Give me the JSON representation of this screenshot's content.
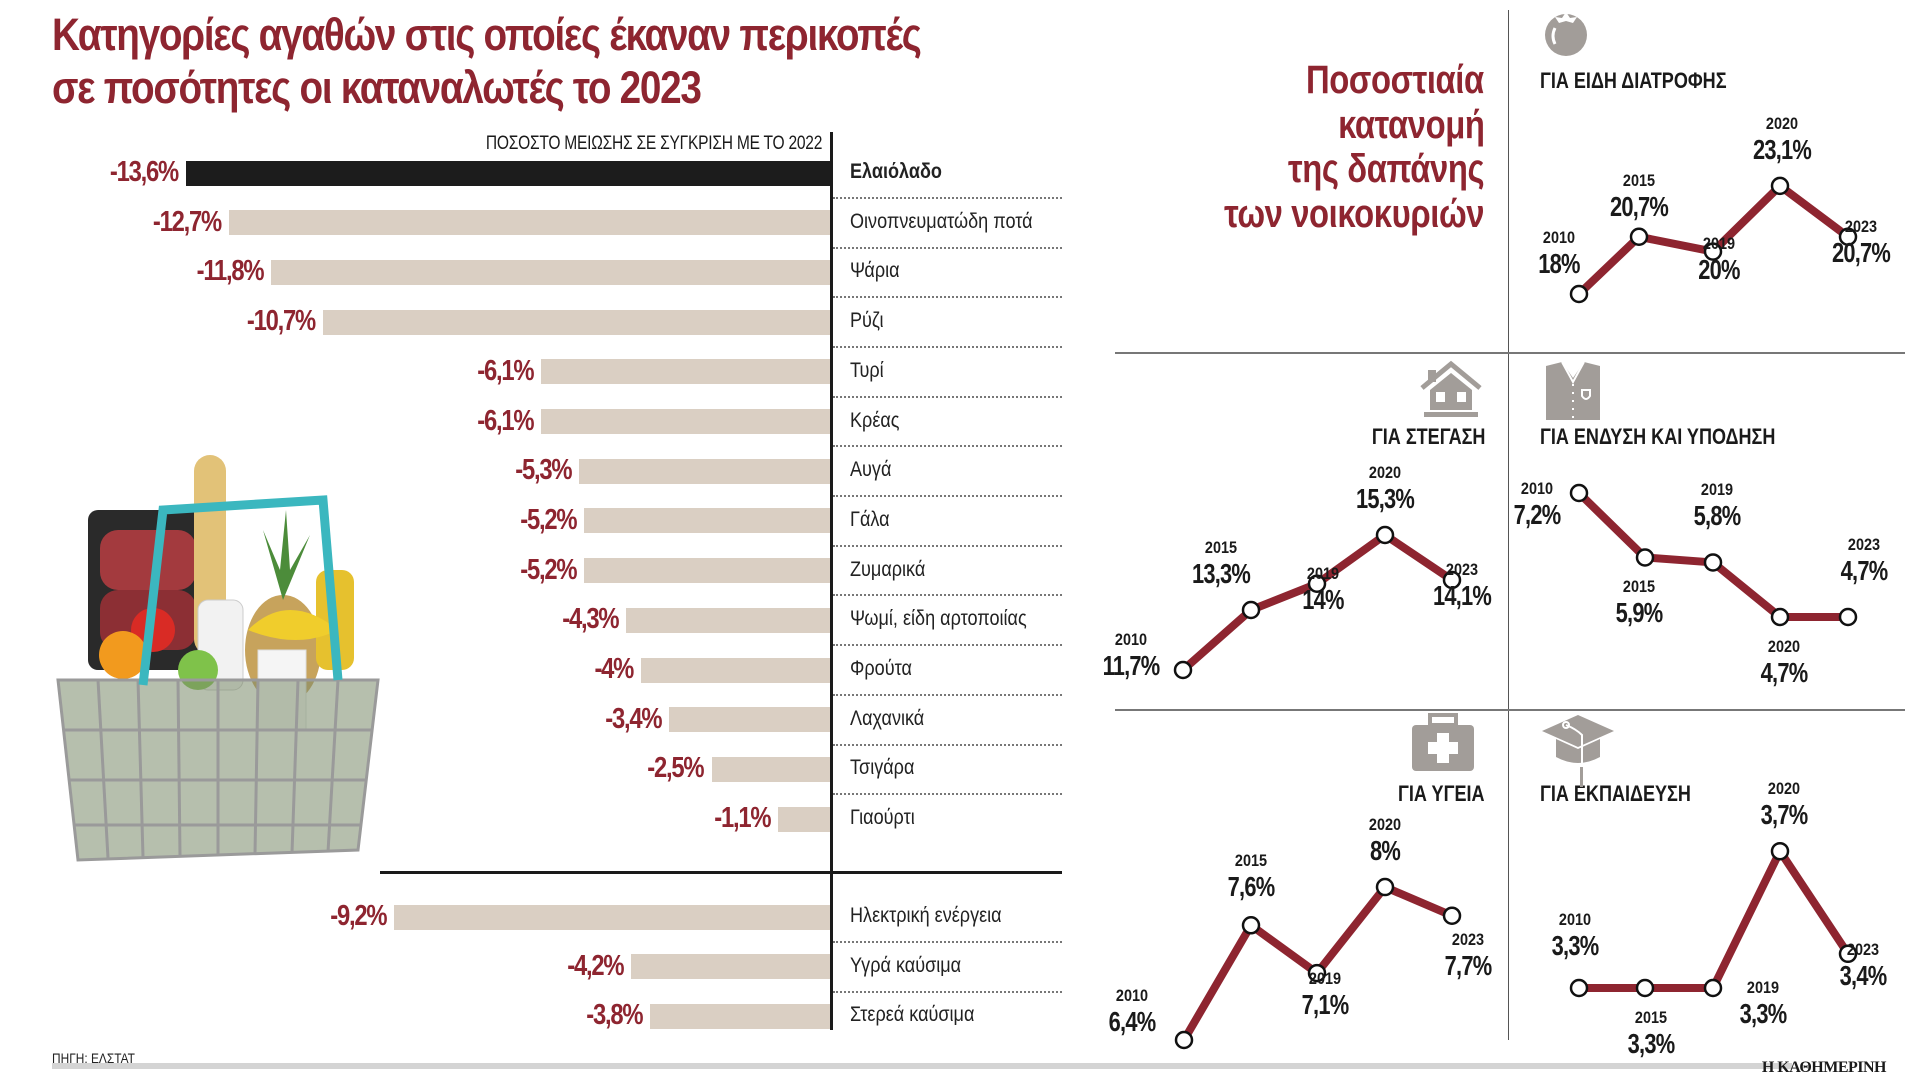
{
  "title_line1": "Κατηγορίες αγαθών στις οποίες έκαναν περικοπές",
  "title_line2": "σε ποσότητες οι καταναλωτές το 2023",
  "source": "ΠΗΓΗ: ΕΛΣΤΑΤ",
  "brand": "Η ΚΑΘΗΜΕΡΙΝΗ",
  "colors": {
    "accent": "#8e2530",
    "bar": "#dacfc3",
    "highlight_bar": "#1c1c1c",
    "line": "#8e2530",
    "icon": "#a29d99"
  },
  "right_heading": [
    "Ποσοστιαία",
    "κατανομή",
    "της δαπάνης",
    "των νοικοκυριών"
  ],
  "chart_data": [
    {
      "type": "bar",
      "orientation": "horizontal",
      "title": "ΠΟΣΟΣΤΟ ΜΕΙΩΣΗΣ ΣΕ ΣΥΓΚΡΙΣΗ ΜΕ ΤΟ 2022",
      "unit": "%",
      "groups": [
        {
          "categories": [
            "Ελαιόλαδο",
            "Οινοπνευματώδη ποτά",
            "Ψάρια",
            "Ρύζι",
            "Τυρί",
            "Κρέας",
            "Αυγά",
            "Γάλα",
            "Ζυμαρικά",
            "Ψωμί, είδη αρτοποιίας",
            "Φρούτα",
            "Λαχανικά",
            "Τσιγάρα",
            "Γιαούρτι"
          ],
          "values": [
            -13.6,
            -12.7,
            -11.8,
            -10.7,
            -6.1,
            -6.1,
            -5.3,
            -5.2,
            -5.2,
            -4.3,
            -4,
            -3.4,
            -2.5,
            -1.1
          ],
          "labels": [
            "-13,6%",
            "-12,7%",
            "-11,8%",
            "-10,7%",
            "-6,1%",
            "-6,1%",
            "-5,3%",
            "-5,2%",
            "-5,2%",
            "-4,3%",
            "-4%",
            "-3,4%",
            "-2,5%",
            "-1,1%"
          ],
          "highlight": "Ελαιόλαδο"
        },
        {
          "categories": [
            "Ηλεκτρική ενέργεια",
            "Υγρά καύσιμα",
            "Στερεά καύσιμα"
          ],
          "values": [
            -9.2,
            -4.2,
            -3.8
          ],
          "labels": [
            "-9,2%",
            "-4,2%",
            "-3,8%"
          ]
        }
      ]
    },
    {
      "type": "line",
      "title": "ΓΙΑ ΕΙΔΗ ΔΙΑΤΡΟΦΗΣ",
      "icon": "tomato-icon",
      "x": [
        "2010",
        "2015",
        "2019",
        "2020",
        "2023"
      ],
      "values": [
        18,
        20.7,
        20,
        23.1,
        20.7
      ],
      "labels": [
        "18%",
        "20,7%",
        "20%",
        "23,1%",
        "20,7%"
      ]
    },
    {
      "type": "line",
      "title": "ΓΙΑ ΣΤΕΓΑΣΗ",
      "icon": "house-icon",
      "x": [
        "2010",
        "2015",
        "2019",
        "2020",
        "2023"
      ],
      "values": [
        11.7,
        13.3,
        14,
        15.3,
        14.1
      ],
      "labels": [
        "11,7%",
        "13,3%",
        "14%",
        "15,3%",
        "14,1%"
      ]
    },
    {
      "type": "line",
      "title": "ΓΙΑ ΕΝΔΥΣΗ ΚΑΙ ΥΠΟΔΗΣΗ",
      "icon": "shirt-icon",
      "x": [
        "2010",
        "2015",
        "2019",
        "2020",
        "2023"
      ],
      "values": [
        7.2,
        5.9,
        5.8,
        4.7,
        4.7
      ],
      "labels": [
        "7,2%",
        "5,9%",
        "5,8%",
        "4,7%",
        "4,7%"
      ]
    },
    {
      "type": "line",
      "title": "ΓΙΑ ΥΓΕΙΑ",
      "icon": "first-aid-kit-icon",
      "x": [
        "2010",
        "2015",
        "2019",
        "2020",
        "2023"
      ],
      "values": [
        6.4,
        7.6,
        7.1,
        8,
        7.7
      ],
      "labels": [
        "6,4%",
        "7,6%",
        "7,1%",
        "8%",
        "7,7%"
      ]
    },
    {
      "type": "line",
      "title": "ΓΙΑ ΕΚΠΑΙΔΕΥΣΗ",
      "icon": "graduation-cap-icon",
      "x": [
        "2010",
        "2015",
        "2019",
        "2020",
        "2023"
      ],
      "values": [
        3.3,
        3.3,
        3.3,
        3.7,
        3.4
      ],
      "labels": [
        "3,3%",
        "3,3%",
        "3,3%",
        "3,7%",
        "3,4%"
      ]
    }
  ]
}
